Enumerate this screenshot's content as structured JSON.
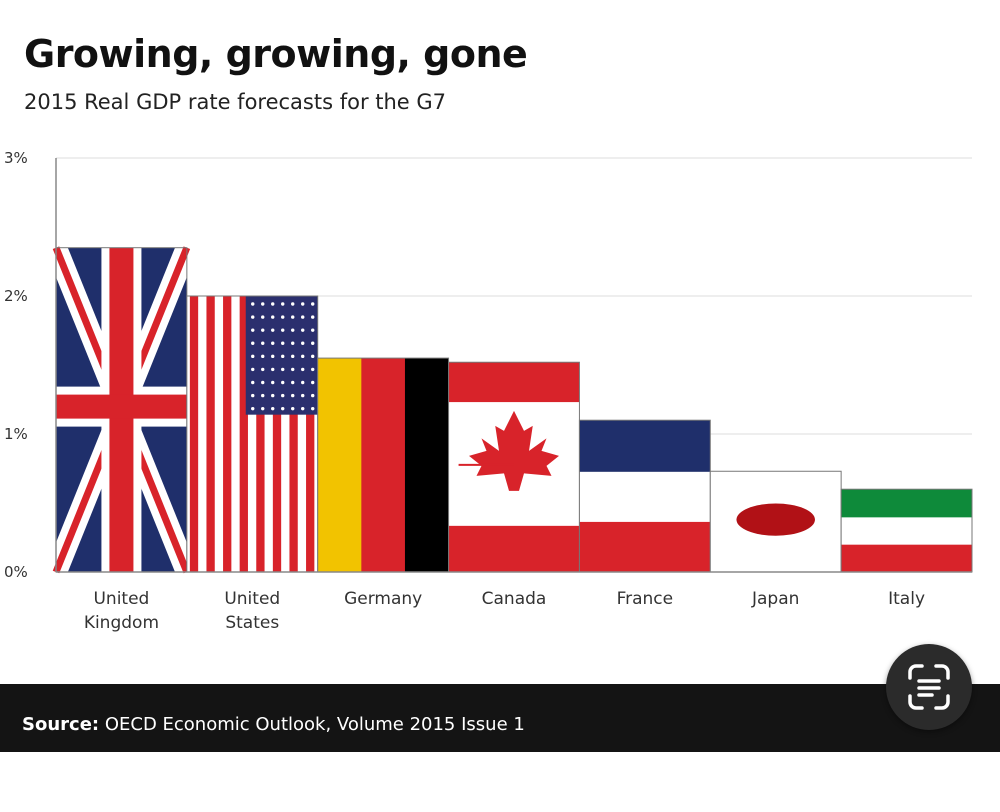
{
  "chart_data": {
    "type": "bar",
    "title": "Growing, growing, gone",
    "subtitle": "2015 Real GDP rate forecasts for the G7",
    "xlabel": "",
    "ylabel": "",
    "ylim": [
      0,
      3
    ],
    "yticks": [
      "0%",
      "1%",
      "2%",
      "3%"
    ],
    "grid": true,
    "categories": [
      [
        "United",
        "Kingdom"
      ],
      [
        "United",
        "States"
      ],
      [
        "Germany"
      ],
      [
        "Canada"
      ],
      [
        "France"
      ],
      [
        "Japan"
      ],
      [
        "Italy"
      ]
    ],
    "values": [
      2.35,
      2.0,
      1.55,
      1.52,
      1.1,
      0.73,
      0.6
    ],
    "bar_fill": [
      "uk-flag",
      "us-flag",
      "germany-flag",
      "canada-flag",
      "france-flag",
      "japan-flag",
      "italy-flag"
    ]
  },
  "footer": {
    "source_label": "Source:",
    "source_text": " OECD Economic Outlook, Volume 2015 Issue 1"
  },
  "overlay": {
    "scan_icon": "scan-text-icon"
  },
  "colors": {
    "uk_blue": "#1f2f6b",
    "us_blue": "#2b2f6e",
    "flag_red": "#d8232a",
    "germany_gold": "#f2c300",
    "japan_red": "#b11116",
    "italy_green": "#0e8a3a",
    "grid": "#dddddd",
    "footer_bg": "#141414"
  }
}
